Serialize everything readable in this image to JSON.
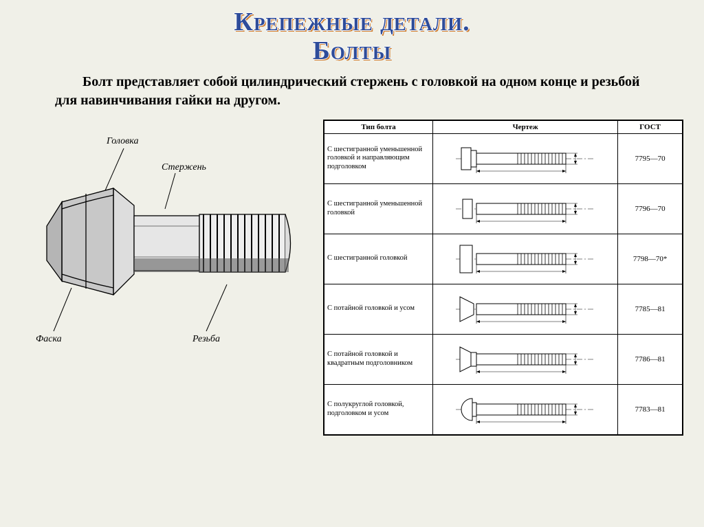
{
  "title_line1": "Крепежные детали.",
  "title_line2": "Болты",
  "description": "Болт представляет собой цилиндрический стержень с головкой на одном конце и резьбой для навинчивания гайки на другом.",
  "diagram_labels": {
    "head": "Головка",
    "shaft": "Стержень",
    "chamfer": "Фаска",
    "thread": "Резьба"
  },
  "table": {
    "headers": [
      "Тип болта",
      "Чертеж",
      "ГОСТ"
    ],
    "rows": [
      {
        "type": "С шестигранной уменьшенной головкой и направляющим подголовком",
        "gost": "7795—70",
        "shape": "hex-collar"
      },
      {
        "type": "С шестигранной уменьшенной головкой",
        "gost": "7796—70",
        "shape": "hex-small"
      },
      {
        "type": "С шестигранной головкой",
        "gost": "7798—70*",
        "shape": "hex"
      },
      {
        "type": "С потайной головкой и усом",
        "gost": "7785—81",
        "shape": "countersunk"
      },
      {
        "type": "С потайной головкой и квадратным подголовником",
        "gost": "7786—81",
        "shape": "countersunk-sq"
      },
      {
        "type": "С полукруглой головкой, подголовком и усом",
        "gost": "7783—81",
        "shape": "round"
      }
    ]
  },
  "colors": {
    "bg": "#f0f0e8",
    "title": "#2e4c9a",
    "title_shadow": "#d07a2a"
  }
}
